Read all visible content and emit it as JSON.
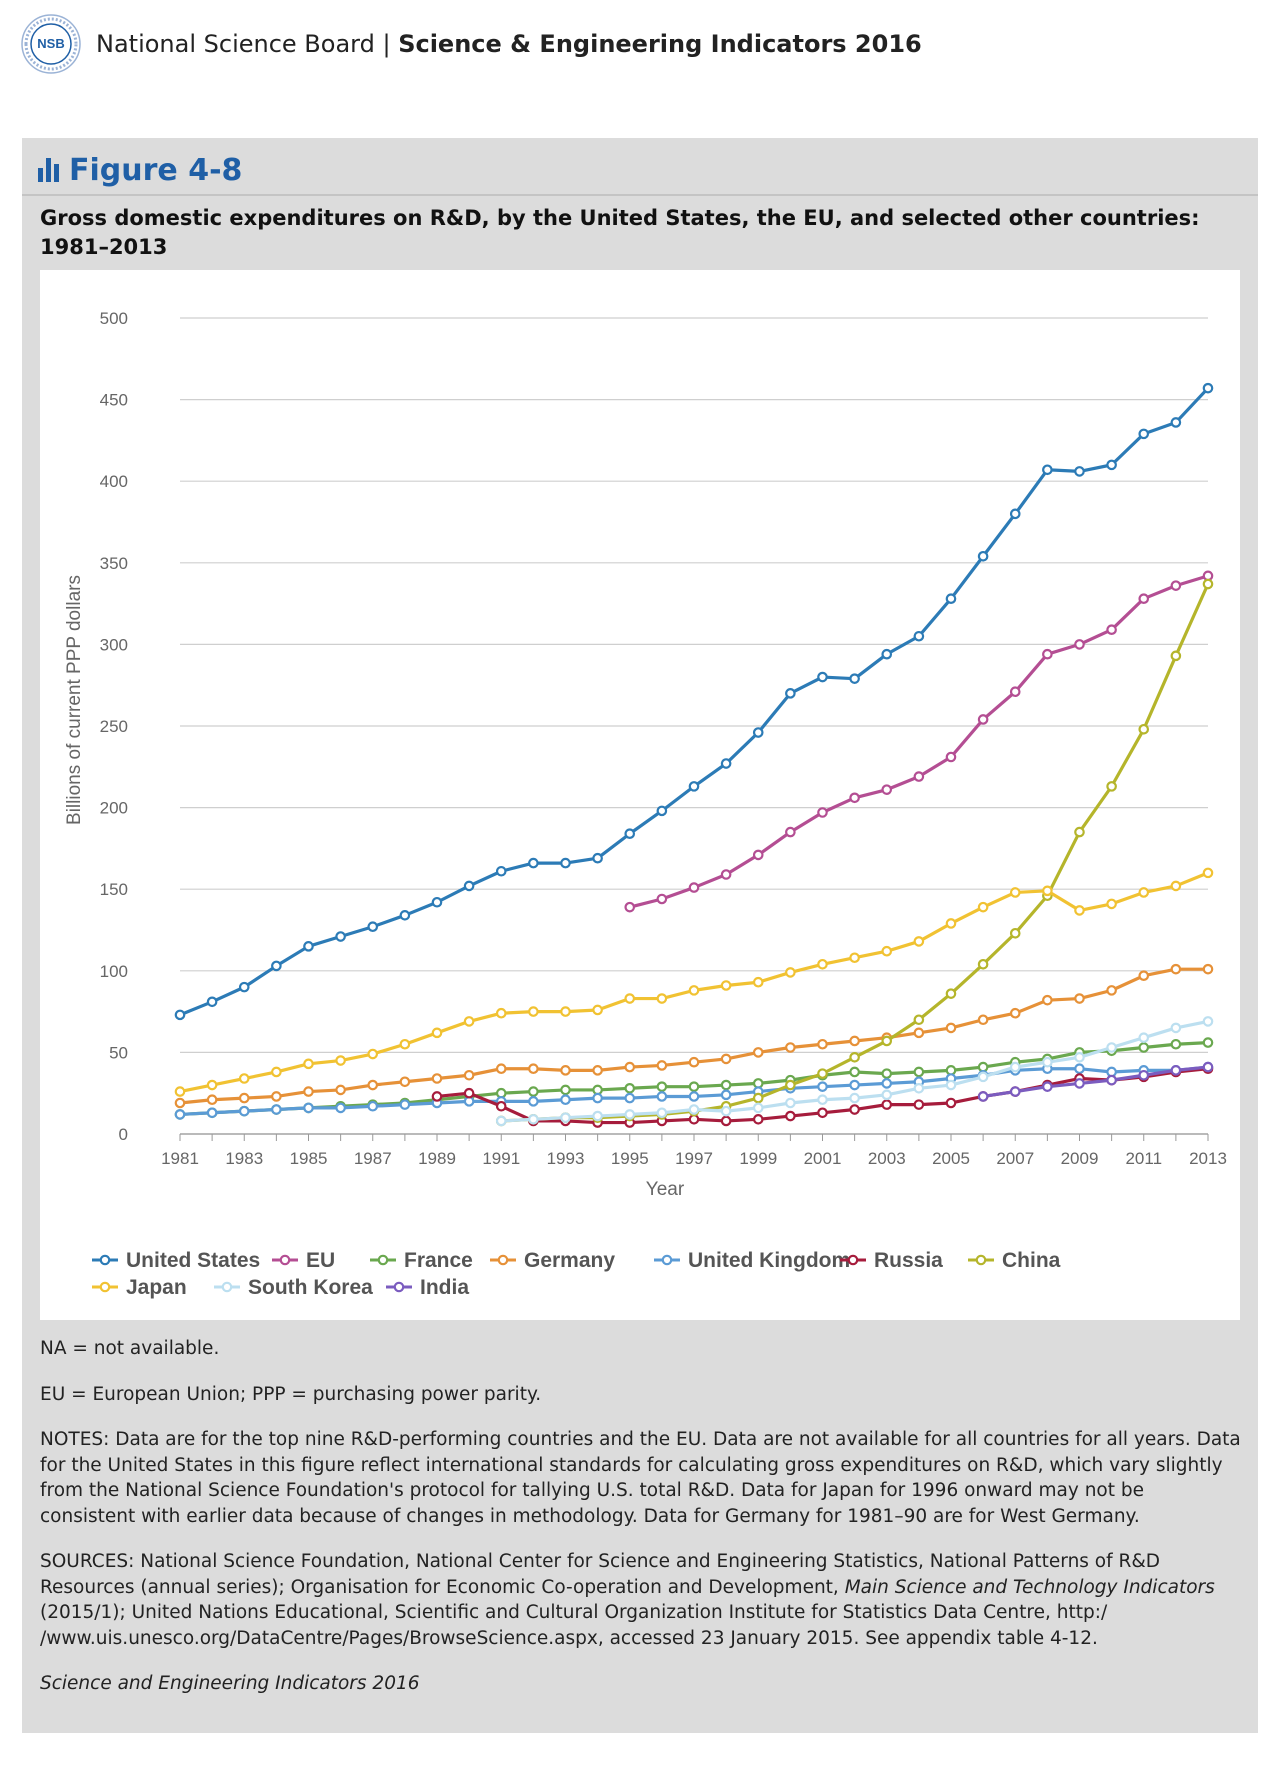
{
  "header": {
    "org": "National Science Board",
    "separator": " | ",
    "publication": "Science & Engineering Indicators 2016",
    "logo_text": "NSB",
    "logo_ring_text": "NATIONAL SCIENCE FOUNDATION"
  },
  "figure": {
    "label": "Figure 4-8",
    "caption": "Gross domestic expenditures on R&D, by the United States, the EU, and selected other countries: 1981–2013"
  },
  "chart_data": {
    "type": "line",
    "title": "",
    "xlabel": "Year",
    "ylabel": "Billions of current PPP dollars",
    "xlim": [
      1981,
      2013
    ],
    "ylim": [
      0,
      500
    ],
    "yticks": [
      0,
      50,
      100,
      150,
      200,
      250,
      300,
      350,
      400,
      450,
      500
    ],
    "xticks": [
      1981,
      1983,
      1985,
      1987,
      1989,
      1991,
      1993,
      1995,
      1997,
      1999,
      2001,
      2003,
      2005,
      2007,
      2009,
      2011,
      2013
    ],
    "grid": true,
    "legend_position": "bottom",
    "series": [
      {
        "name": "United States",
        "color": "#2c7bb6",
        "start": 1981,
        "values": [
          73,
          81,
          90,
          103,
          115,
          121,
          127,
          134,
          142,
          152,
          161,
          166,
          166,
          169,
          184,
          198,
          213,
          227,
          246,
          270,
          280,
          279,
          294,
          305,
          328,
          354,
          380,
          407,
          406,
          410,
          429,
          436,
          457
        ]
      },
      {
        "name": "EU",
        "color": "#b44e93",
        "start": 1995,
        "values": [
          139,
          144,
          151,
          159,
          171,
          185,
          197,
          206,
          211,
          219,
          231,
          254,
          271,
          294,
          300,
          309,
          328,
          336,
          342
        ]
      },
      {
        "name": "France",
        "color": "#6aa84f",
        "start": 1981,
        "values": [
          12,
          13,
          14,
          15,
          16,
          17,
          18,
          19,
          21,
          23,
          25,
          26,
          27,
          27,
          28,
          29,
          29,
          30,
          31,
          33,
          36,
          38,
          37,
          38,
          39,
          41,
          44,
          46,
          50,
          51,
          53,
          55,
          56
        ]
      },
      {
        "name": "Germany",
        "color": "#e69138",
        "start": 1981,
        "values": [
          19,
          21,
          22,
          23,
          26,
          27,
          30,
          32,
          34,
          36,
          40,
          40,
          39,
          39,
          41,
          42,
          44,
          46,
          50,
          53,
          55,
          57,
          59,
          62,
          65,
          70,
          74,
          82,
          83,
          88,
          97,
          101,
          101
        ]
      },
      {
        "name": "United Kingdom",
        "color": "#5b9bd5",
        "start": 1981,
        "values": [
          12,
          13,
          14,
          15,
          16,
          16,
          17,
          18,
          19,
          20,
          20,
          20,
          21,
          22,
          22,
          23,
          23,
          24,
          26,
          28,
          29,
          30,
          31,
          32,
          34,
          36,
          39,
          40,
          40,
          38,
          39,
          39,
          41
        ]
      },
      {
        "name": "Russia",
        "color": "#a61c3c",
        "start": 1989,
        "values": [
          23,
          25,
          17,
          8,
          8,
          7,
          7,
          8,
          9,
          8,
          9,
          11,
          13,
          15,
          18,
          18,
          19,
          23,
          26,
          30,
          34,
          33,
          35,
          38,
          40
        ]
      },
      {
        "name": "China",
        "color": "#b5b52b",
        "start": 1991,
        "values": [
          8,
          9,
          10,
          10,
          11,
          12,
          14,
          17,
          22,
          30,
          37,
          47,
          57,
          70,
          86,
          104,
          123,
          146,
          185,
          213,
          248,
          293,
          337
        ]
      },
      {
        "name": "Japan",
        "color": "#f1c232",
        "start": 1981,
        "values": [
          26,
          30,
          34,
          38,
          43,
          45,
          49,
          55,
          62,
          69,
          74,
          75,
          75,
          76,
          83,
          83,
          88,
          91,
          93,
          99,
          104,
          108,
          112,
          118,
          129,
          139,
          148,
          149,
          137,
          141,
          148,
          152,
          160
        ]
      },
      {
        "name": "South Korea",
        "color": "#bcdff0",
        "start": 1991,
        "values": [
          8,
          9,
          10,
          11,
          12,
          13,
          15,
          14,
          16,
          19,
          21,
          22,
          24,
          28,
          30,
          35,
          41,
          44,
          47,
          53,
          59,
          65,
          69
        ]
      },
      {
        "name": "India",
        "color": "#7b5cbf",
        "start": 2006,
        "values": [
          23,
          26,
          29,
          31,
          33,
          36,
          39,
          41
        ]
      }
    ]
  },
  "notes": {
    "na": "NA = not available.",
    "abbrev": "EU = European Union; PPP = purchasing power parity.",
    "notes": "NOTES: Data are for the top nine R&D-performing countries and the EU. Data are not available for all countries for all years. Data for the United States in this figure reflect international standards for calculating gross expenditures on R&D, which vary slightly from the National Science Foundation's protocol for tallying U.S. total R&D. Data for Japan for 1996 onward may not be consistent with earlier data because of changes in methodology. Data for Germany for 1981–90 are for West Germany.",
    "sources_pre": "SOURCES: National Science Foundation, National Center for Science and Engineering Statistics, National Patterns of R&D Resources (annual series); Organisation for Economic Co-operation and Development, ",
    "sources_italic": "Main Science and Technology Indicators",
    "sources_post": " (2015/1); United Nations Educational, Scientific and Cultural Organization Institute for Statistics Data Centre, http:/ /www.uis.unesco.org/DataCentre/Pages/BrowseScience.aspx, accessed 23 January 2015. See appendix table 4-12.",
    "credit": "Science and Engineering Indicators 2016"
  }
}
